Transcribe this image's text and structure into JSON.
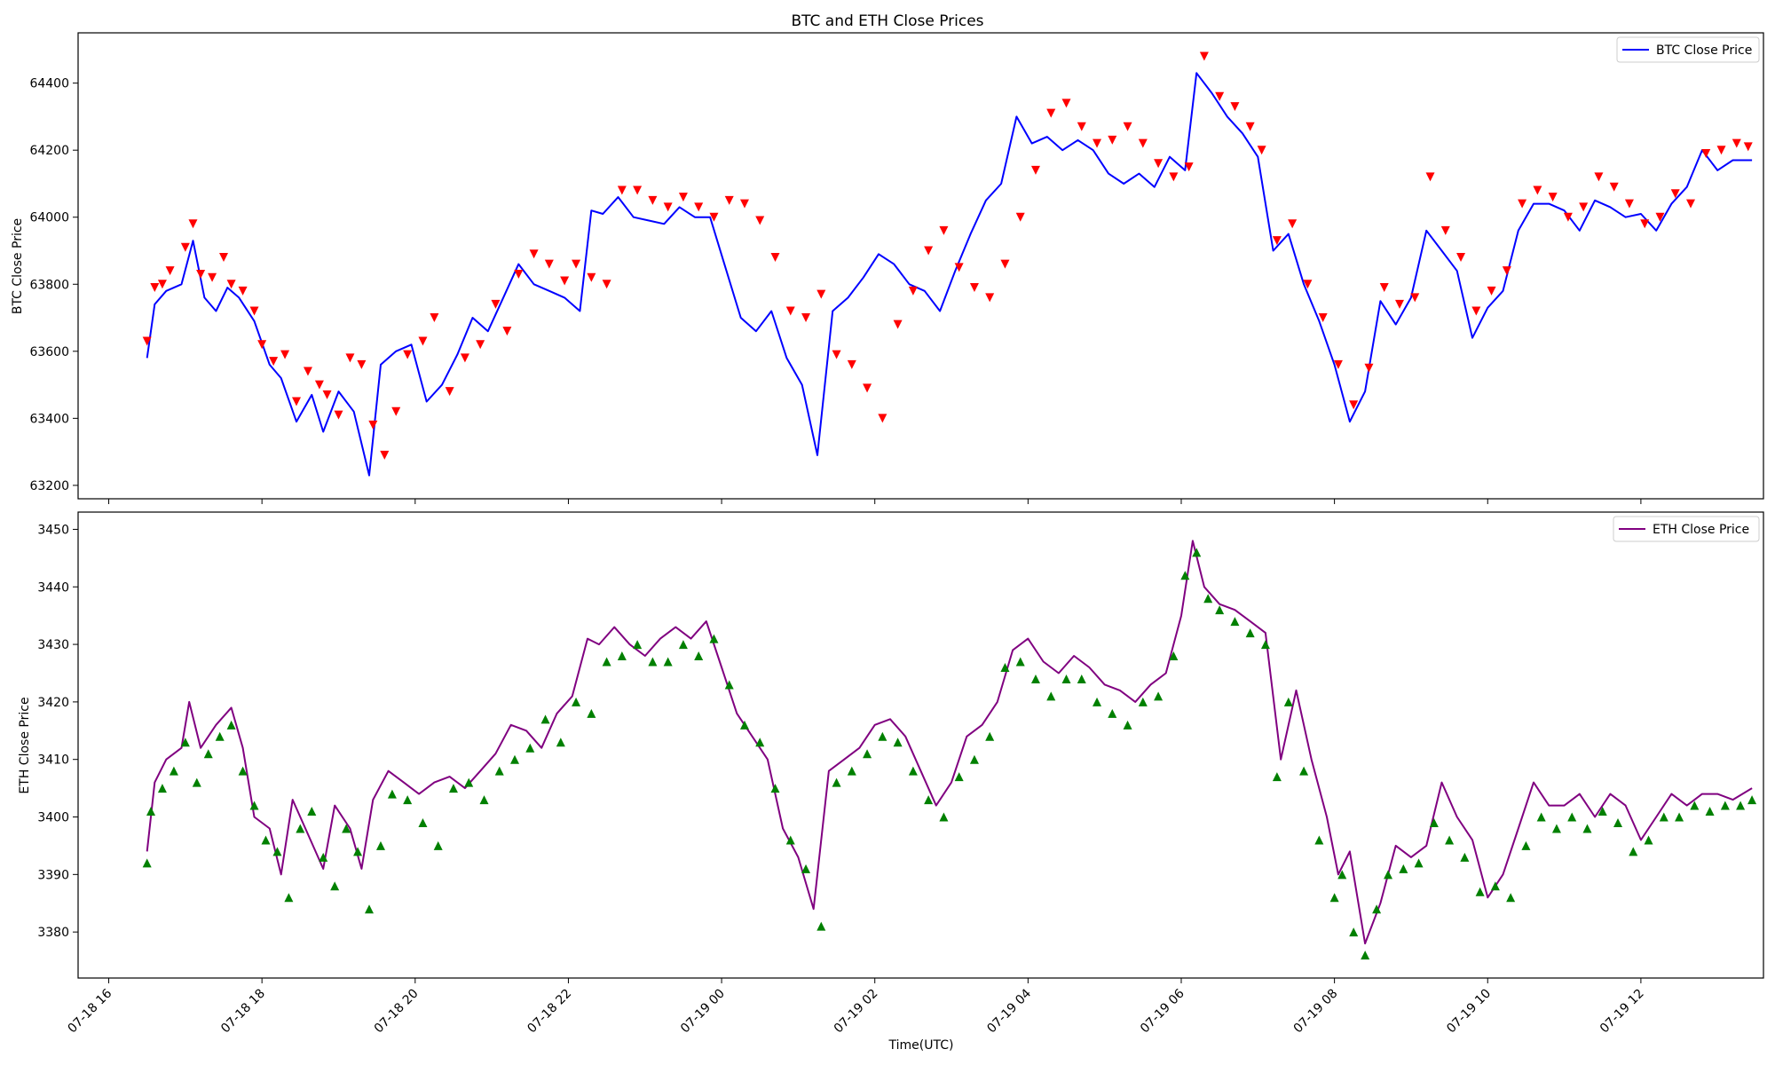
{
  "figure_title": "BTC and ETH Close Prices",
  "colors": {
    "btc_line": "#0000ff",
    "eth_line": "#800080",
    "btc_marker": "#ff0000",
    "eth_marker": "#008000"
  },
  "chart_data": [
    {
      "type": "line",
      "title": "BTC and ETH Close Prices",
      "xlabel": "",
      "ylabel": "BTC Close Price",
      "x_ticks": [
        "07-18 16",
        "07-18 18",
        "07-18 20",
        "07-18 22",
        "07-19 00",
        "07-19 02",
        "07-19 04",
        "07-19 06",
        "07-19 08",
        "07-19 10",
        "07-19 12"
      ],
      "y_ticks": [
        63200,
        63400,
        63600,
        63800,
        64000,
        64200,
        64400
      ],
      "ylim": [
        63160,
        64550
      ],
      "xlim_hours": [
        15.6,
        37.6
      ],
      "legend": {
        "position": "top-right",
        "entries": [
          "BTC Close Price"
        ]
      },
      "grid": false,
      "series": [
        {
          "name": "BTC Close Price",
          "x_hours": [
            16.5,
            16.6,
            16.75,
            16.95,
            17.1,
            17.25,
            17.4,
            17.55,
            17.7,
            17.9,
            18.1,
            18.25,
            18.45,
            18.65,
            18.8,
            19.0,
            19.2,
            19.4,
            19.55,
            19.75,
            19.95,
            20.15,
            20.35,
            20.55,
            20.75,
            20.95,
            21.15,
            21.35,
            21.55,
            21.75,
            21.95,
            22.15,
            22.3,
            22.45,
            22.65,
            22.85,
            23.05,
            23.25,
            23.45,
            23.65,
            23.85,
            24.05,
            24.25,
            24.45,
            24.65,
            24.85,
            25.05,
            25.25,
            25.45,
            25.65,
            25.85,
            26.05,
            26.25,
            26.45,
            26.65,
            26.85,
            27.05,
            27.25,
            27.45,
            27.65,
            27.85,
            28.05,
            28.25,
            28.45,
            28.65,
            28.85,
            29.05,
            29.25,
            29.45,
            29.65,
            29.85,
            30.05,
            30.2,
            30.4,
            30.6,
            30.8,
            31.0,
            31.2,
            31.4,
            31.6,
            31.8,
            32.0,
            32.2,
            32.4,
            32.6,
            32.8,
            33.0,
            33.2,
            33.4,
            33.6,
            33.8,
            34.0,
            34.2,
            34.4,
            34.6,
            34.8,
            35.0,
            35.2,
            35.4,
            35.6,
            35.8,
            36.0,
            36.2,
            36.4,
            36.6,
            36.8,
            37.0,
            37.2,
            37.45
          ],
          "values": [
            63580,
            63740,
            63780,
            63800,
            63930,
            63760,
            63720,
            63790,
            63760,
            63690,
            63560,
            63520,
            63390,
            63470,
            63360,
            63480,
            63420,
            63230,
            63560,
            63600,
            63620,
            63450,
            63500,
            63590,
            63700,
            63660,
            63760,
            63860,
            63800,
            63780,
            63760,
            63720,
            64020,
            64010,
            64060,
            64000,
            63990,
            63980,
            64030,
            64000,
            64000,
            63850,
            63700,
            63660,
            63720,
            63580,
            63500,
            63290,
            63720,
            63760,
            63820,
            63890,
            63860,
            63800,
            63780,
            63720,
            63840,
            63950,
            64050,
            64100,
            64300,
            64220,
            64240,
            64200,
            64230,
            64200,
            64130,
            64100,
            64130,
            64090,
            64180,
            64140,
            64430,
            64370,
            64300,
            64250,
            64180,
            63900,
            63950,
            63800,
            63690,
            63560,
            63390,
            63480,
            63750,
            63680,
            63760,
            63960,
            63900,
            63840,
            63640,
            63730,
            63780,
            63960,
            64040,
            64040,
            64020,
            63960,
            64050,
            64030,
            64000,
            64010,
            63960,
            64040,
            64090,
            64200,
            64140,
            64170,
            64170
          ]
        }
      ],
      "markers": {
        "shape": "triangle-down",
        "x_hours": [
          16.5,
          16.6,
          16.7,
          16.8,
          17.0,
          17.1,
          17.2,
          17.35,
          17.5,
          17.6,
          17.75,
          17.9,
          18.0,
          18.15,
          18.3,
          18.45,
          18.6,
          18.75,
          18.85,
          19.0,
          19.15,
          19.3,
          19.45,
          19.6,
          19.75,
          19.9,
          20.1,
          20.25,
          20.45,
          20.65,
          20.85,
          21.05,
          21.2,
          21.35,
          21.55,
          21.75,
          21.95,
          22.1,
          22.3,
          22.5,
          22.7,
          22.9,
          23.1,
          23.3,
          23.5,
          23.7,
          23.9,
          24.1,
          24.3,
          24.5,
          24.7,
          24.9,
          25.1,
          25.3,
          25.5,
          25.7,
          25.9,
          26.1,
          26.3,
          26.5,
          26.7,
          26.9,
          27.1,
          27.3,
          27.5,
          27.7,
          27.9,
          28.1,
          28.3,
          28.5,
          28.7,
          28.9,
          29.1,
          29.3,
          29.5,
          29.7,
          29.9,
          30.1,
          30.3,
          30.5,
          30.7,
          30.9,
          31.05,
          31.25,
          31.45,
          31.65,
          31.85,
          32.05,
          32.25,
          32.45,
          32.65,
          32.85,
          33.05,
          33.25,
          33.45,
          33.65,
          33.85,
          34.05,
          34.25,
          34.45,
          34.65,
          34.85,
          35.05,
          35.25,
          35.45,
          35.65,
          35.85,
          36.05,
          36.25,
          36.45,
          36.65,
          36.85,
          37.05,
          37.25,
          37.4
        ],
        "values": [
          63630,
          63790,
          63800,
          63840,
          63910,
          63980,
          63830,
          63820,
          63880,
          63800,
          63780,
          63720,
          63620,
          63570,
          63590,
          63450,
          63540,
          63500,
          63470,
          63410,
          63580,
          63560,
          63380,
          63290,
          63420,
          63590,
          63630,
          63700,
          63480,
          63580,
          63620,
          63740,
          63660,
          63830,
          63890,
          63860,
          63810,
          63860,
          63820,
          63800,
          64080,
          64080,
          64050,
          64030,
          64060,
          64030,
          64000,
          64050,
          64040,
          63990,
          63880,
          63720,
          63700,
          63770,
          63590,
          63560,
          63490,
          63400,
          63680,
          63780,
          63900,
          63960,
          63850,
          63790,
          63760,
          63860,
          64000,
          64140,
          64310,
          64340,
          64270,
          64220,
          64230,
          64270,
          64220,
          64160,
          64120,
          64150,
          64480,
          64360,
          64330,
          64270,
          64200,
          63930,
          63980,
          63800,
          63700,
          63560,
          63440,
          63550,
          63790,
          63740,
          63760,
          64120,
          63960,
          63880,
          63720,
          63780,
          63840,
          64040,
          64080,
          64060,
          64000,
          64030,
          64120,
          64090,
          64040,
          63980,
          64000,
          64070,
          64040,
          64190,
          64200,
          64220,
          64210
        ]
      }
    },
    {
      "type": "line",
      "title": "",
      "xlabel": "Time(UTC)",
      "ylabel": "ETH Close Price",
      "x_ticks": [
        "07-18 16",
        "07-18 18",
        "07-18 20",
        "07-18 22",
        "07-19 00",
        "07-19 02",
        "07-19 04",
        "07-19 06",
        "07-19 08",
        "07-19 10",
        "07-19 12"
      ],
      "y_ticks": [
        3380,
        3390,
        3400,
        3410,
        3420,
        3430,
        3440,
        3450
      ],
      "ylim": [
        3372,
        3453
      ],
      "xlim_hours": [
        15.6,
        37.6
      ],
      "legend": {
        "position": "top-right",
        "entries": [
          "ETH Close Price"
        ]
      },
      "grid": false,
      "series": [
        {
          "name": "ETH Close Price",
          "x_hours": [
            16.5,
            16.6,
            16.75,
            16.95,
            17.05,
            17.2,
            17.4,
            17.6,
            17.75,
            17.9,
            18.1,
            18.25,
            18.4,
            18.6,
            18.8,
            18.95,
            19.15,
            19.3,
            19.45,
            19.65,
            19.85,
            20.05,
            20.25,
            20.45,
            20.65,
            20.85,
            21.05,
            21.25,
            21.45,
            21.65,
            21.85,
            22.05,
            22.25,
            22.4,
            22.6,
            22.8,
            23.0,
            23.2,
            23.4,
            23.6,
            23.8,
            24.0,
            24.2,
            24.4,
            24.6,
            24.8,
            25.0,
            25.2,
            25.4,
            25.6,
            25.8,
            26.0,
            26.2,
            26.4,
            26.6,
            26.8,
            27.0,
            27.2,
            27.4,
            27.6,
            27.8,
            28.0,
            28.2,
            28.4,
            28.6,
            28.8,
            29.0,
            29.2,
            29.4,
            29.6,
            29.8,
            30.0,
            30.15,
            30.3,
            30.5,
            30.7,
            30.9,
            31.1,
            31.3,
            31.5,
            31.7,
            31.9,
            32.05,
            32.2,
            32.4,
            32.6,
            32.8,
            33.0,
            33.2,
            33.4,
            33.6,
            33.8,
            34.0,
            34.2,
            34.4,
            34.6,
            34.8,
            35.0,
            35.2,
            35.4,
            35.6,
            35.8,
            36.0,
            36.2,
            36.4,
            36.6,
            36.8,
            37.0,
            37.2,
            37.45
          ],
          "values": [
            3394,
            3406,
            3410,
            3412,
            3420,
            3412,
            3416,
            3419,
            3412,
            3400,
            3398,
            3390,
            3403,
            3397,
            3391,
            3402,
            3398,
            3391,
            3403,
            3408,
            3406,
            3404,
            3406,
            3407,
            3405,
            3408,
            3411,
            3416,
            3415,
            3412,
            3418,
            3421,
            3431,
            3430,
            3433,
            3430,
            3428,
            3431,
            3433,
            3431,
            3434,
            3426,
            3418,
            3414,
            3410,
            3398,
            3393,
            3384,
            3408,
            3410,
            3412,
            3416,
            3417,
            3414,
            3408,
            3402,
            3406,
            3414,
            3416,
            3420,
            3429,
            3431,
            3427,
            3425,
            3428,
            3426,
            3423,
            3422,
            3420,
            3423,
            3425,
            3435,
            3448,
            3440,
            3437,
            3436,
            3434,
            3432,
            3410,
            3422,
            3410,
            3400,
            3390,
            3394,
            3378,
            3385,
            3395,
            3393,
            3395,
            3406,
            3400,
            3396,
            3386,
            3390,
            3398,
            3406,
            3402,
            3402,
            3404,
            3400,
            3404,
            3402,
            3396,
            3400,
            3404,
            3402,
            3404,
            3404,
            3403,
            3405
          ]
        }
      ],
      "markers": {
        "shape": "triangle-up",
        "x_hours": [
          16.5,
          16.55,
          16.7,
          16.85,
          17.0,
          17.15,
          17.3,
          17.45,
          17.6,
          17.75,
          17.9,
          18.05,
          18.2,
          18.35,
          18.5,
          18.65,
          18.8,
          18.95,
          19.1,
          19.25,
          19.4,
          19.55,
          19.7,
          19.9,
          20.1,
          20.3,
          20.5,
          20.7,
          20.9,
          21.1,
          21.3,
          21.5,
          21.7,
          21.9,
          22.1,
          22.3,
          22.5,
          22.7,
          22.9,
          23.1,
          23.3,
          23.5,
          23.7,
          23.9,
          24.1,
          24.3,
          24.5,
          24.7,
          24.9,
          25.1,
          25.3,
          25.5,
          25.7,
          25.9,
          26.1,
          26.3,
          26.5,
          26.7,
          26.9,
          27.1,
          27.3,
          27.5,
          27.7,
          27.9,
          28.1,
          28.3,
          28.5,
          28.7,
          28.9,
          29.1,
          29.3,
          29.5,
          29.7,
          29.9,
          30.05,
          30.2,
          30.35,
          30.5,
          30.7,
          30.9,
          31.1,
          31.25,
          31.4,
          31.6,
          31.8,
          32.0,
          32.1,
          32.25,
          32.4,
          32.55,
          32.7,
          32.9,
          33.1,
          33.3,
          33.5,
          33.7,
          33.9,
          34.1,
          34.3,
          34.5,
          34.7,
          34.9,
          35.1,
          35.3,
          35.5,
          35.7,
          35.9,
          36.1,
          36.3,
          36.5,
          36.7,
          36.9,
          37.1,
          37.3,
          37.45
        ],
        "values": [
          3392,
          3401,
          3405,
          3408,
          3413,
          3406,
          3411,
          3414,
          3416,
          3408,
          3402,
          3396,
          3394,
          3386,
          3398,
          3401,
          3393,
          3388,
          3398,
          3394,
          3384,
          3395,
          3404,
          3403,
          3399,
          3395,
          3405,
          3406,
          3403,
          3408,
          3410,
          3412,
          3417,
          3413,
          3420,
          3418,
          3427,
          3428,
          3430,
          3427,
          3427,
          3430,
          3428,
          3431,
          3423,
          3416,
          3413,
          3405,
          3396,
          3391,
          3381,
          3406,
          3408,
          3411,
          3414,
          3413,
          3408,
          3403,
          3400,
          3407,
          3410,
          3414,
          3426,
          3427,
          3424,
          3421,
          3424,
          3424,
          3420,
          3418,
          3416,
          3420,
          3421,
          3428,
          3442,
          3446,
          3438,
          3436,
          3434,
          3432,
          3430,
          3407,
          3420,
          3408,
          3396,
          3386,
          3390,
          3380,
          3376,
          3384,
          3390,
          3391,
          3392,
          3399,
          3396,
          3393,
          3387,
          3388,
          3386,
          3395,
          3400,
          3398,
          3400,
          3398,
          3401,
          3399,
          3394,
          3396,
          3400,
          3400,
          3402,
          3401,
          3402,
          3402,
          3403
        ]
      }
    }
  ]
}
